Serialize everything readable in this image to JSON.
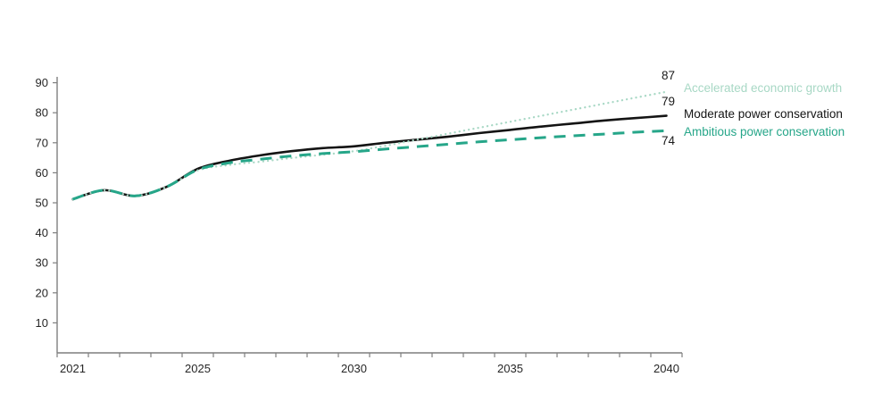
{
  "chart_data": {
    "type": "line",
    "title": "",
    "xlabel": "",
    "ylabel": "",
    "grid": "off",
    "background_color": "#ffffff",
    "axis_color": "#7f7f7f",
    "tick_label_color": "#262626",
    "x": [
      2021,
      2022,
      2023,
      2024,
      2025,
      2026,
      2027,
      2028,
      2029,
      2030,
      2031,
      2032,
      2033,
      2034,
      2035,
      2036,
      2037,
      2038,
      2039,
      2040
    ],
    "x_labeled_ticks": [
      2021,
      2025,
      2030,
      2035,
      2040
    ],
    "y_ticks": [
      10,
      20,
      30,
      40,
      50,
      60,
      70,
      80,
      90
    ],
    "ylim": [
      0,
      92
    ],
    "legend_position": "right-of-line-ends",
    "series": [
      {
        "name": "Accelerated economic growth",
        "style": "dotted",
        "color": "#a8d8c5",
        "end_value": 87,
        "values": [
          51.2,
          54.2,
          52.3,
          55.3,
          60.8,
          62.6,
          63.7,
          64.9,
          66.0,
          67.2,
          69.0,
          71.0,
          73.0,
          75.0,
          77.0,
          79.0,
          81.0,
          83.0,
          85.0,
          87
        ]
      },
      {
        "name": "Moderate power conservation",
        "style": "solid",
        "color": "#141414",
        "end_value": 79,
        "values": [
          51.2,
          54.2,
          52.3,
          55.3,
          61.3,
          64.0,
          65.8,
          67.2,
          68.2,
          68.8,
          70.0,
          71.0,
          72.0,
          73.2,
          74.3,
          75.4,
          76.4,
          77.4,
          78.2,
          79
        ]
      },
      {
        "name": "Ambitious power conservation",
        "style": "dashed",
        "color": "#26a689",
        "end_value": 74,
        "values": [
          51.2,
          54.2,
          52.3,
          55.3,
          61.0,
          63.3,
          64.5,
          65.6,
          66.4,
          67.0,
          67.9,
          68.7,
          69.5,
          70.3,
          71.0,
          71.7,
          72.3,
          72.9,
          73.5,
          74
        ]
      }
    ]
  }
}
